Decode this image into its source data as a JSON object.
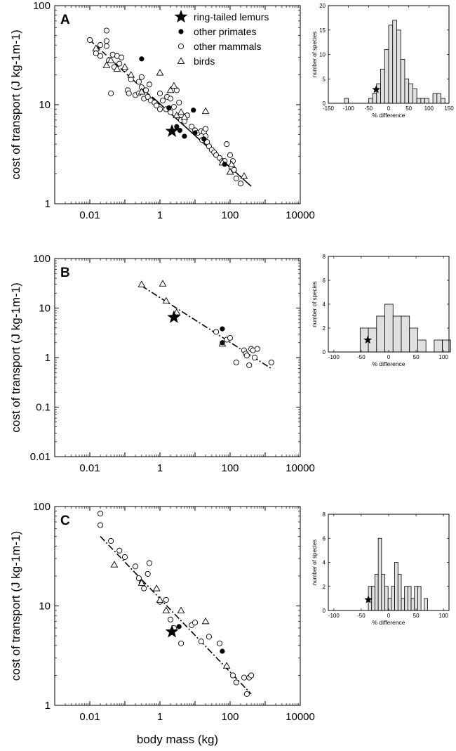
{
  "chart_data": [
    {
      "id": "A",
      "type": "scatter",
      "panel_label": "A",
      "xscale": "log",
      "yscale": "log",
      "xlim": [
        0.001,
        10000
      ],
      "ylim": [
        1,
        100
      ],
      "xticks": [
        "0.01",
        "1",
        "100",
        "10000"
      ],
      "yticks": [
        "1",
        "10",
        "100"
      ],
      "ylabel": "cost of transport (J kg-1m-1)",
      "xlabel": "",
      "legend": {
        "placement": "top-right",
        "entries": [
          {
            "marker": "star",
            "label": "ring-tailed lemurs"
          },
          {
            "marker": "filled-circle",
            "label": "other primates"
          },
          {
            "marker": "open-circle",
            "label": "other mammals"
          },
          {
            "marker": "triangle",
            "label": "birds"
          }
        ]
      },
      "series": [
        {
          "marker": "star",
          "points": [
            [
              2.2,
              5.4
            ]
          ]
        },
        {
          "marker": "filled-circle",
          "points": [
            [
              0.3,
              29
            ],
            [
              1.8,
              9.3
            ],
            [
              3,
              6
            ],
            [
              3.7,
              5.5
            ],
            [
              5,
              4.8
            ],
            [
              9,
              8.8
            ],
            [
              10,
              5.2
            ],
            [
              18,
              4.5
            ],
            [
              70,
              2.5
            ]
          ]
        },
        {
          "marker": "open-circle",
          "points": [
            [
              0.01,
              45
            ],
            [
              0.015,
              33
            ],
            [
              0.02,
              40
            ],
            [
              0.02,
              31
            ],
            [
              0.03,
              56
            ],
            [
              0.03,
              44
            ],
            [
              0.03,
              39
            ],
            [
              0.035,
              28
            ],
            [
              0.04,
              13
            ],
            [
              0.045,
              32
            ],
            [
              0.05,
              24
            ],
            [
              0.06,
              31
            ],
            [
              0.07,
              26
            ],
            [
              0.08,
              30
            ],
            [
              0.1,
              23
            ],
            [
              0.12,
              14
            ],
            [
              0.13,
              13
            ],
            [
              0.15,
              18
            ],
            [
              0.2,
              12.5
            ],
            [
              0.25,
              13
            ],
            [
              0.25,
              17
            ],
            [
              0.3,
              19
            ],
            [
              0.3,
              15
            ],
            [
              0.35,
              11.5
            ],
            [
              0.4,
              14
            ],
            [
              0.45,
              12
            ],
            [
              0.5,
              16
            ],
            [
              0.55,
              11
            ],
            [
              0.7,
              10.5
            ],
            [
              0.8,
              9.8
            ],
            [
              1,
              9
            ],
            [
              1,
              13
            ],
            [
              1.2,
              11
            ],
            [
              1.5,
              9
            ],
            [
              1.6,
              12
            ],
            [
              2,
              8.4
            ],
            [
              2,
              11.5
            ],
            [
              2.5,
              9.5
            ],
            [
              3,
              14
            ],
            [
              3.5,
              10.5
            ],
            [
              4,
              7
            ],
            [
              5,
              6.8
            ],
            [
              6,
              7.8
            ],
            [
              8,
              6
            ],
            [
              10,
              5.5
            ],
            [
              12,
              5.2
            ],
            [
              15,
              5.4
            ],
            [
              16,
              4.4
            ],
            [
              18,
              5.3
            ],
            [
              20,
              4.8
            ],
            [
              20,
              5.7
            ],
            [
              22,
              4.2
            ],
            [
              25,
              3.8
            ],
            [
              30,
              3.5
            ],
            [
              35,
              3.3
            ],
            [
              40,
              3.1
            ],
            [
              50,
              2.9
            ],
            [
              60,
              2.7
            ],
            [
              70,
              2.7
            ],
            [
              80,
              4
            ],
            [
              100,
              3.1
            ],
            [
              110,
              2.3
            ],
            [
              120,
              2.7
            ],
            [
              130,
              2.2
            ],
            [
              150,
              1.8
            ],
            [
              200,
              1.6
            ]
          ]
        },
        {
          "marker": "triangle",
          "points": [
            [
              0.015,
              37
            ],
            [
              0.03,
              25
            ],
            [
              0.04,
              28
            ],
            [
              0.06,
              23
            ],
            [
              0.1,
              24
            ],
            [
              0.15,
              20
            ],
            [
              0.3,
              13.5
            ],
            [
              1,
              21
            ],
            [
              2,
              14
            ],
            [
              2.5,
              15.5
            ],
            [
              3,
              7.8
            ],
            [
              4,
              8.4
            ],
            [
              5,
              7.5
            ],
            [
              20,
              8.6
            ],
            [
              60,
              2.6
            ],
            [
              100,
              2.1
            ],
            [
              110,
              2.5
            ],
            [
              250,
              1.9
            ]
          ]
        }
      ],
      "fits": [
        {
          "style": "dashed",
          "from": [
            0.01,
            45
          ],
          "to": [
            1,
            10
          ]
        },
        {
          "style": "solid",
          "from": [
            0.6,
            12
          ],
          "to": [
            400,
            1.5
          ]
        }
      ]
    },
    {
      "id": "A-hist",
      "type": "bar",
      "ylabel": "number of species",
      "xlabel": "% difference",
      "xlim": [
        -150,
        150
      ],
      "ylim": [
        0,
        20
      ],
      "xticks": [
        "-150",
        "-100",
        "-50",
        "0",
        "50",
        "100",
        "150"
      ],
      "yticks": [
        "0",
        "5",
        "10",
        "15",
        "20"
      ],
      "bin_width": 10,
      "bins": [
        [
          -110,
          1
        ],
        [
          -50,
          1
        ],
        [
          -40,
          2
        ],
        [
          -30,
          4
        ],
        [
          -20,
          7
        ],
        [
          -10,
          11
        ],
        [
          0,
          16
        ],
        [
          10,
          17
        ],
        [
          20,
          15
        ],
        [
          30,
          9
        ],
        [
          40,
          5
        ],
        [
          50,
          4
        ],
        [
          60,
          3
        ],
        [
          70,
          1
        ],
        [
          80,
          1
        ],
        [
          90,
          1
        ],
        [
          110,
          2
        ],
        [
          120,
          2
        ],
        [
          130,
          1
        ]
      ],
      "star": {
        "x": -31,
        "y": 2.8
      }
    },
    {
      "id": "B",
      "type": "scatter",
      "panel_label": "B",
      "xscale": "log",
      "yscale": "log",
      "xlim": [
        0.001,
        10000
      ],
      "ylim": [
        0.01,
        100
      ],
      "xticks": [
        "0.01",
        "1",
        "100",
        "10000"
      ],
      "yticks": [
        "0.01",
        "0.1",
        "1",
        "10",
        "100"
      ],
      "ylabel": "cost of transport (J kg-1m-1)",
      "xlabel": "",
      "series": [
        {
          "marker": "star",
          "points": [
            [
              2.5,
              6.5
            ]
          ]
        },
        {
          "marker": "filled-circle",
          "points": [
            [
              60,
              3.8
            ],
            [
              60,
              2
            ]
          ]
        },
        {
          "marker": "open-circle",
          "points": [
            [
              40,
              3.3
            ],
            [
              80,
              2.3
            ],
            [
              100,
              2.5
            ],
            [
              150,
              0.8
            ],
            [
              250,
              1.4
            ],
            [
              280,
              1.2
            ],
            [
              300,
              1.1
            ],
            [
              350,
              0.7
            ],
            [
              400,
              1.5
            ],
            [
              450,
              1.4
            ],
            [
              500,
              1
            ],
            [
              600,
              1.5
            ],
            [
              1500,
              0.8
            ]
          ]
        },
        {
          "marker": "triangle",
          "points": [
            [
              0.3,
              30
            ],
            [
              1.2,
              31
            ],
            [
              1.5,
              14
            ],
            [
              3,
              8.2
            ],
            [
              60,
              1.9
            ]
          ]
        }
      ],
      "fits": [
        {
          "style": "dash-dot",
          "from": [
            0.3,
            28
          ],
          "to": [
            1500,
            0.6
          ]
        }
      ]
    },
    {
      "id": "B-hist",
      "type": "bar",
      "ylabel": "number of species",
      "xlabel": "% difference",
      "xlim": [
        -110,
        110
      ],
      "ylim": [
        0,
        8
      ],
      "xticks": [
        "-100",
        "-50",
        "0",
        "50",
        "100"
      ],
      "yticks": [
        "0",
        "2",
        "4",
        "6",
        "8"
      ],
      "bin_width": 15,
      "bins": [
        [
          -52,
          2
        ],
        [
          -37,
          2
        ],
        [
          -22,
          3
        ],
        [
          -7,
          4
        ],
        [
          8,
          3
        ],
        [
          23,
          3
        ],
        [
          38,
          2
        ],
        [
          53,
          1
        ],
        [
          68,
          0
        ],
        [
          83,
          1
        ],
        [
          98,
          1
        ]
      ],
      "star": {
        "x": -38,
        "y": 1
      }
    },
    {
      "id": "C",
      "type": "scatter",
      "panel_label": "C",
      "xscale": "log",
      "yscale": "log",
      "xlim": [
        0.001,
        10000
      ],
      "ylim": [
        1,
        100
      ],
      "xticks": [
        "0.01",
        "1",
        "100",
        "10000"
      ],
      "yticks": [
        "1",
        "10",
        "100"
      ],
      "ylabel": "cost of transport (J kg-1m-1)",
      "xlabel": "body mass (kg)",
      "series": [
        {
          "marker": "star",
          "points": [
            [
              2.2,
              5.5
            ]
          ]
        },
        {
          "marker": "filled-circle",
          "points": [
            [
              3.5,
              6.2
            ],
            [
              60,
              3.5
            ]
          ]
        },
        {
          "marker": "open-circle",
          "points": [
            [
              0.02,
              85
            ],
            [
              0.02,
              65
            ],
            [
              0.04,
              45
            ],
            [
              0.07,
              36
            ],
            [
              0.1,
              31
            ],
            [
              0.2,
              25
            ],
            [
              0.25,
              19
            ],
            [
              0.3,
              17
            ],
            [
              0.35,
              15
            ],
            [
              0.45,
              21
            ],
            [
              0.5,
              27
            ],
            [
              1,
              11
            ],
            [
              1.5,
              11.5
            ],
            [
              2,
              7.3
            ],
            [
              2.5,
              6
            ],
            [
              4,
              4.2
            ],
            [
              8,
              6.4
            ],
            [
              10,
              6.8
            ],
            [
              15,
              4.4
            ],
            [
              25,
              4.9
            ],
            [
              50,
              4.2
            ],
            [
              120,
              2
            ],
            [
              150,
              1.7
            ],
            [
              250,
              1.9
            ],
            [
              300,
              1.3
            ],
            [
              350,
              1.9
            ],
            [
              400,
              2
            ]
          ]
        },
        {
          "marker": "triangle",
          "points": [
            [
              0.05,
              26
            ],
            [
              0.3,
              17
            ],
            [
              0.8,
              15
            ],
            [
              1,
              11.5
            ],
            [
              1.5,
              9
            ],
            [
              4,
              9
            ],
            [
              20,
              7
            ],
            [
              80,
              2.5
            ]
          ]
        }
      ],
      "fits": [
        {
          "style": "dash-dot",
          "from": [
            0.02,
            50
          ],
          "to": [
            400,
            1.3
          ]
        }
      ]
    },
    {
      "id": "C-hist",
      "type": "bar",
      "ylabel": "number of species",
      "xlabel": "% difference",
      "xlim": [
        -110,
        110
      ],
      "ylim": [
        0,
        8
      ],
      "xticks": [
        "-100",
        "-50",
        "0",
        "50",
        "100"
      ],
      "yticks": [
        "0",
        "2",
        "4",
        "6",
        "8"
      ],
      "bin_width": 6,
      "bins": [
        [
          -37,
          2
        ],
        [
          -31,
          2
        ],
        [
          -25,
          3
        ],
        [
          -19,
          6
        ],
        [
          -13,
          3
        ],
        [
          -7,
          2
        ],
        [
          -1,
          1
        ],
        [
          5,
          2
        ],
        [
          11,
          4
        ],
        [
          17,
          3
        ],
        [
          23,
          1
        ],
        [
          29,
          2
        ],
        [
          35,
          2
        ],
        [
          41,
          1
        ],
        [
          47,
          2
        ],
        [
          53,
          2
        ],
        [
          59,
          0
        ],
        [
          65,
          1
        ]
      ],
      "star": {
        "x": -37,
        "y": 0.9
      }
    }
  ]
}
